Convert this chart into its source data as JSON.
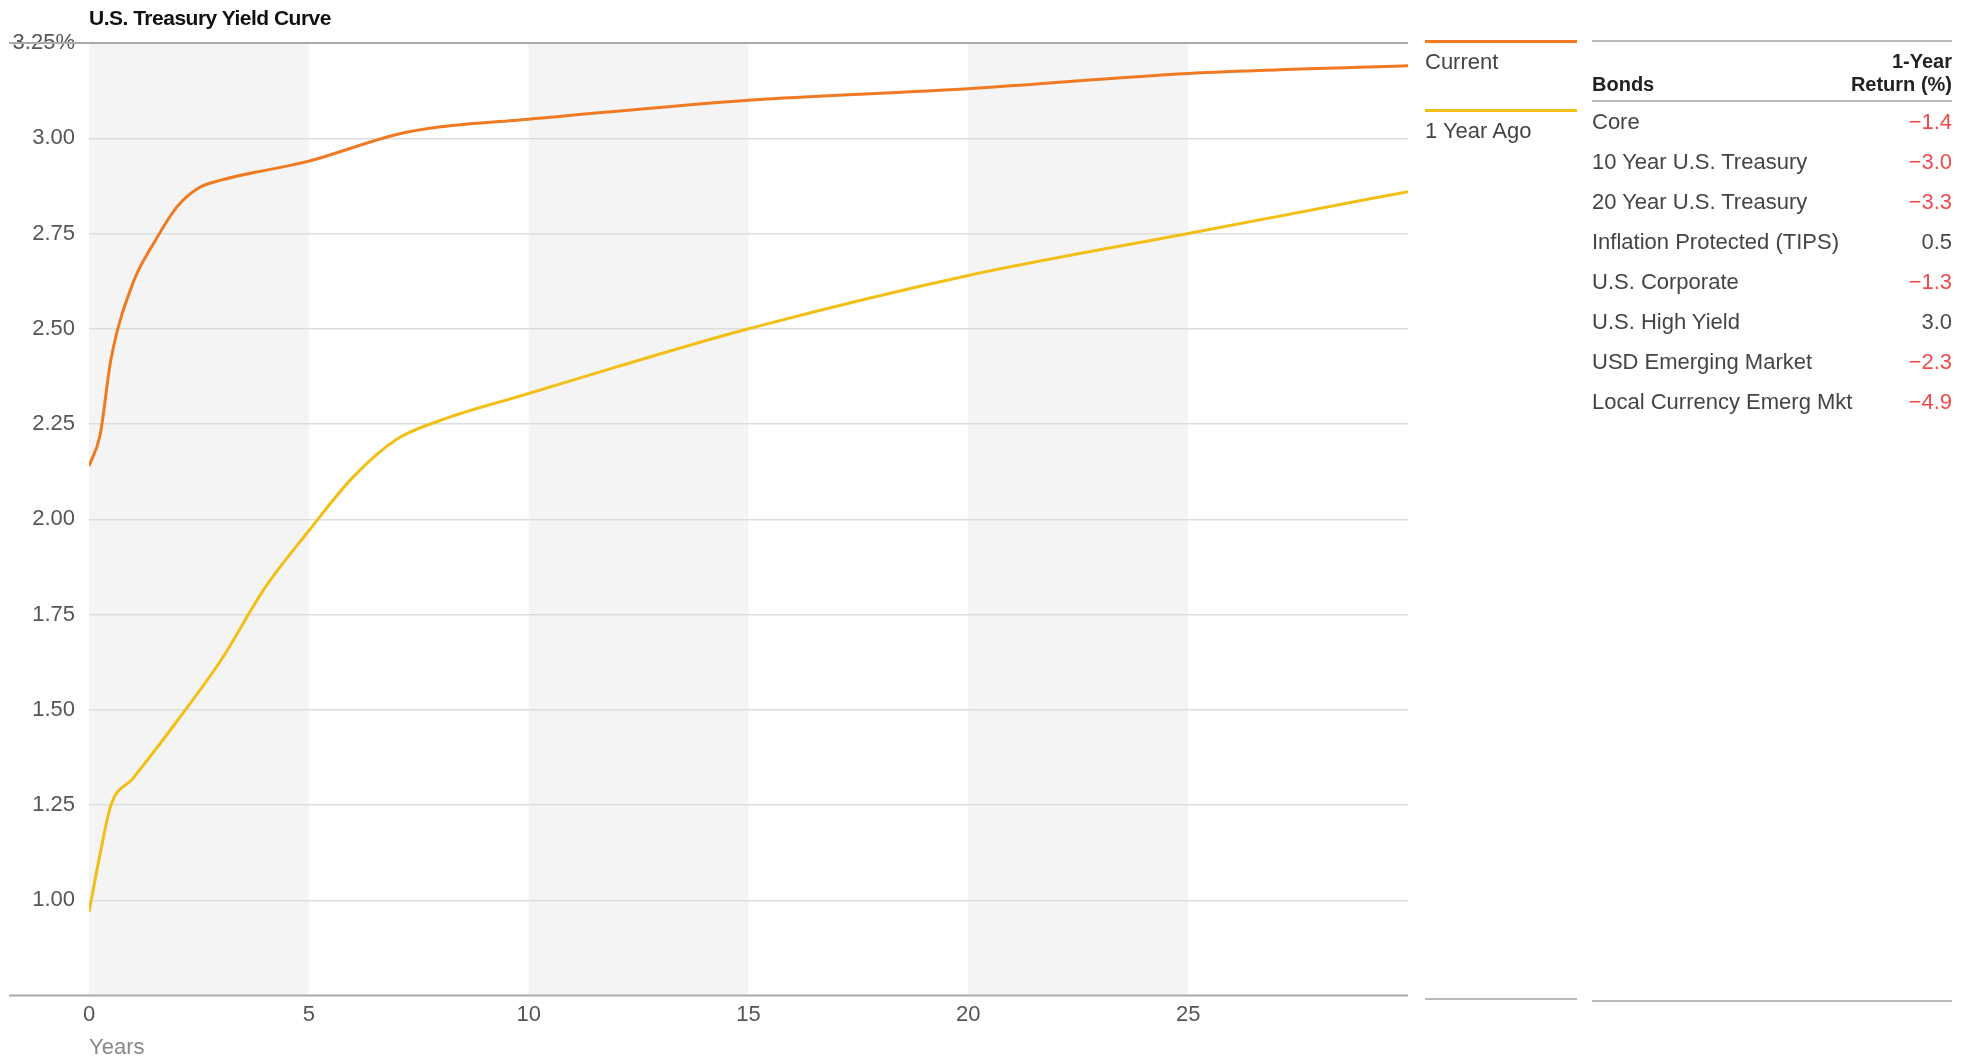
{
  "chart_data": [
    {
      "type": "line",
      "title": "U.S. Treasury Yield Curve",
      "xlabel": "Years",
      "series": [
        {
          "name": "Current",
          "color": "#f07a22",
          "x": [
            0,
            0.25,
            0.5,
            1,
            1.5,
            2,
            2.5,
            3,
            5,
            7,
            8,
            10,
            15,
            20,
            25,
            30
          ],
          "values": [
            2.14,
            2.22,
            2.42,
            2.62,
            2.73,
            2.82,
            2.87,
            2.89,
            2.94,
            3.01,
            3.03,
            3.05,
            3.1,
            3.13,
            3.17,
            3.19
          ]
        },
        {
          "name": "1 Year Ago",
          "color": "#f2bf16",
          "x": [
            0,
            0.25,
            0.5,
            1,
            2,
            3,
            4,
            5,
            6,
            7,
            8,
            10,
            12,
            15,
            20,
            25,
            30
          ],
          "values": [
            0.97,
            1.12,
            1.25,
            1.32,
            1.47,
            1.63,
            1.82,
            1.97,
            2.11,
            2.21,
            2.26,
            2.33,
            2.4,
            2.5,
            2.64,
            2.75,
            2.86
          ]
        }
      ],
      "xlim": [
        0,
        30
      ],
      "xticks": [
        0,
        5,
        10,
        15,
        20,
        25
      ],
      "ylim": [
        0.75,
        3.25
      ],
      "yticks": [
        {
          "value": 3.25,
          "label": "3.25%"
        },
        {
          "value": 3.0,
          "label": "3.00"
        },
        2.75,
        {
          "value": 2.5,
          "label": "2.50"
        },
        2.25,
        {
          "value": 2.0,
          "label": "2.00"
        },
        1.75,
        {
          "value": 1.5,
          "label": "1.50"
        },
        1.25,
        {
          "value": 1.0,
          "label": "1.00"
        }
      ],
      "bands": [
        {
          "axis": "x",
          "from": 0,
          "to": 5,
          "color": "#f4f4f4"
        },
        {
          "axis": "x",
          "from": 10,
          "to": 15,
          "color": "#f4f4f4"
        },
        {
          "axis": "x",
          "from": 20,
          "to": 25,
          "color": "#f4f4f4"
        }
      ],
      "grid": "y",
      "legend": "right",
      "marker": "none",
      "line_style": "solid"
    },
    {
      "type": "other",
      "xlabel": "Bonds",
      "ylabel": "1-Year Return (%)",
      "categories": [
        "Core",
        "10 Year U.S. Treasury",
        "20 Year U.S. Treasury",
        "Inflation Protected (TIPS)",
        "U.S. Corporate",
        "U.S. High Yield",
        "USD Emerging Market",
        "Local Currency Emerg Mkt"
      ],
      "value_labels": [
        "−1.4",
        "−3.0",
        "−3.3",
        "0.5",
        "−1.3",
        "3.0",
        "−2.3",
        "−4.9"
      ],
      "colors": [
        "#ee4b4b",
        "#ee4b4b",
        "#ee4b4b",
        "#4a4a4a",
        "#ee4b4b",
        "#4a4a4a",
        "#ee4b4b",
        "#ee4b4b"
      ]
    }
  ]
}
